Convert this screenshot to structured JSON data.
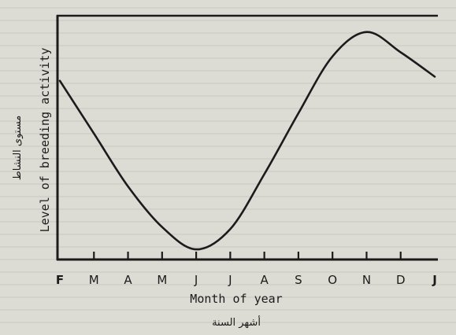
{
  "chart_data": {
    "type": "line",
    "xlabel": "Month of year",
    "xlabel_secondary": "أشهر السنة",
    "ylabel": "Level of breeding activity",
    "ylabel_secondary": "مستوى النشاط",
    "categories": [
      "F",
      "M",
      "A",
      "M",
      "J",
      "J",
      "A",
      "S",
      "O",
      "N",
      "D",
      "J"
    ],
    "series": [
      {
        "values": [
          0.88,
          0.62,
          0.36,
          0.16,
          0.05,
          0.15,
          0.42,
          0.72,
          1.0,
          1.12,
          1.02,
          0.9
        ]
      }
    ],
    "yticks": false,
    "ylim": [
      0,
      1.2
    ],
    "grid": false,
    "legend": "none"
  }
}
